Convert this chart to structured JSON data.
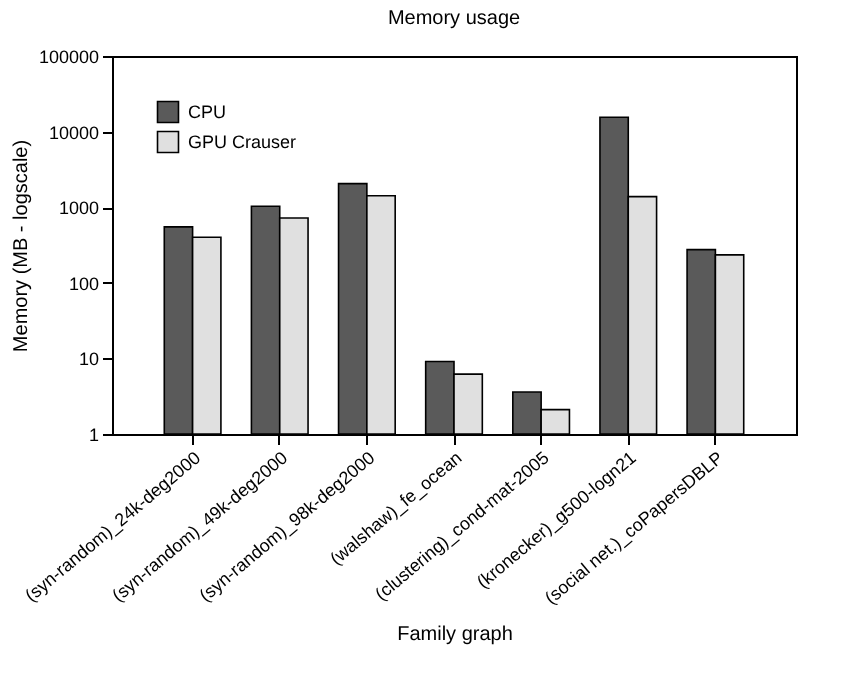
{
  "chart_data": {
    "type": "bar",
    "title": "Memory usage",
    "xlabel": "Family graph",
    "ylabel": "Memory (MB - logscale)",
    "categories": [
      "(syn-random)_24k-deg2000",
      "(syn-random)_49k-deg2000",
      "(syn-random)_98k-deg2000",
      "(walshaw)_fe_ocean",
      "(clustering)_cond-mat-2005",
      "(kronecker)_g500-logn21",
      "(social net.)_coPapersDBLP"
    ],
    "series": [
      {
        "name": "CPU",
        "color": "#5a5a5a",
        "values": [
          550,
          1030,
          2050,
          9.1,
          3.6,
          15500,
          275
        ]
      },
      {
        "name": "GPU Crauser",
        "color": "#e0e0e0",
        "values": [
          400,
          720,
          1420,
          6.2,
          2.1,
          1380,
          234
        ]
      }
    ],
    "log": "y",
    "ylim": [
      1,
      100000
    ],
    "yticks": [
      1,
      10,
      100,
      1000,
      10000,
      100000
    ],
    "grid": false,
    "legend": "top left"
  }
}
